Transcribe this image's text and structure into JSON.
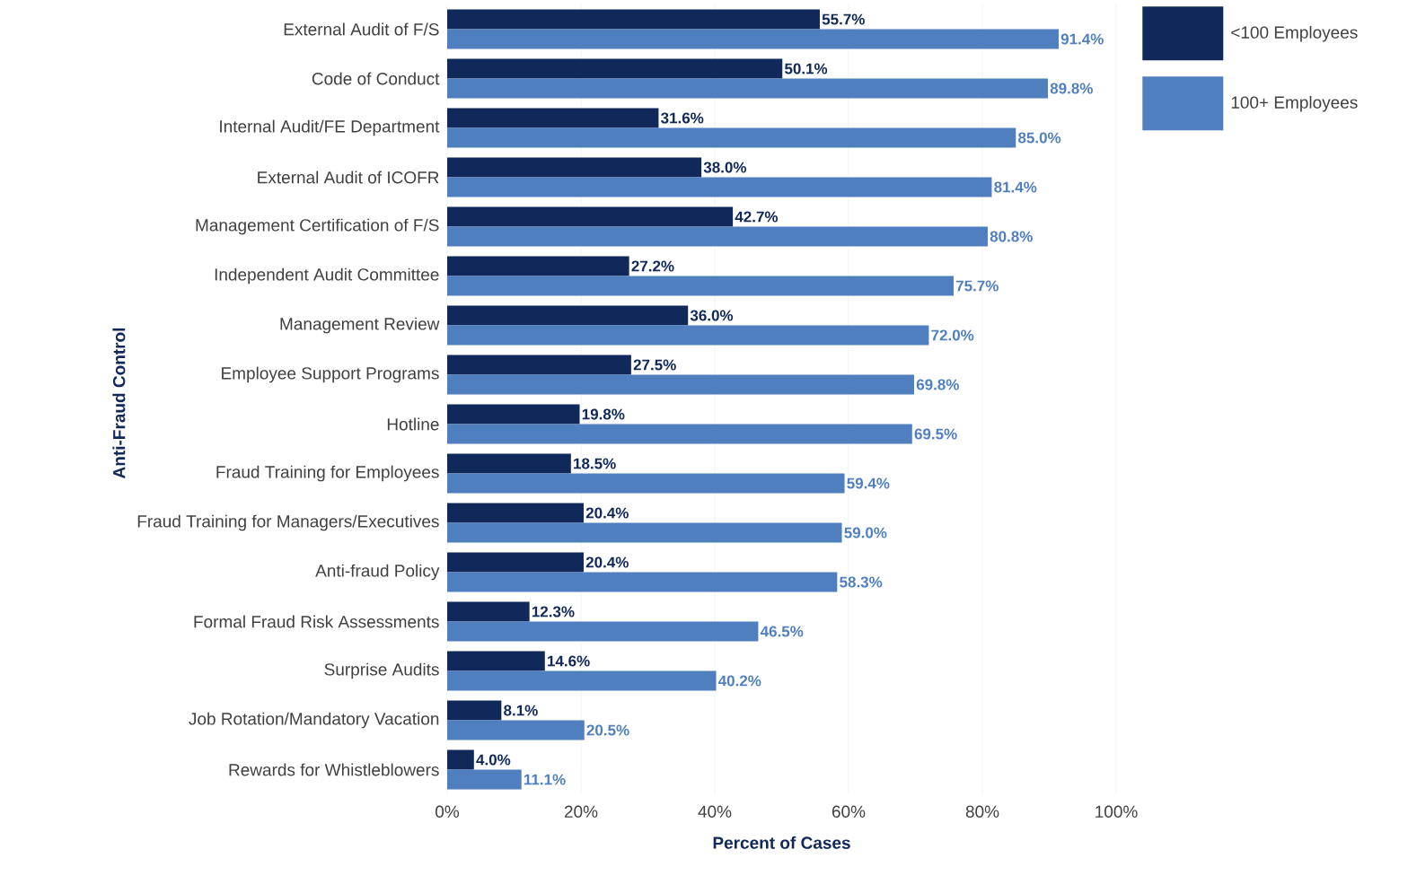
{
  "chart_data": {
    "type": "bar",
    "orientation": "horizontal",
    "xlabel": "Percent of Cases",
    "ylabel": "Anti-Fraud Control",
    "categories": [
      "External Audit of F/S",
      "Code of Conduct",
      "Internal Audit/FE Department",
      "External Audit of ICOFR",
      "Management Certification of F/S",
      "Independent Audit Committee",
      "Management Review",
      "Employee Support Programs",
      "Hotline",
      "Fraud Training for Employees",
      "Fraud Training for Managers/Executives",
      "Anti-fraud Policy",
      "Formal Fraud Risk Assessments",
      "Surprise Audits",
      "Job Rotation/Mandatory Vacation",
      "Rewards for Whistleblowers"
    ],
    "series": [
      {
        "name": "<100 Employees",
        "color": "#11295a",
        "values": [
          55.7,
          50.1,
          31.6,
          38.0,
          42.7,
          27.2,
          36.0,
          27.5,
          19.8,
          18.5,
          20.4,
          20.4,
          12.3,
          14.6,
          8.1,
          4.0
        ],
        "value_labels": [
          "55.7%",
          "50.1%",
          "31.6%",
          "38.0%",
          "42.7%",
          "27.2%",
          "36.0%",
          "27.5%",
          "19.8%",
          "18.5%",
          "20.4%",
          "20.4%",
          "12.3%",
          "14.6%",
          "8.1%",
          "4.0%"
        ]
      },
      {
        "name": "100+ Employees",
        "color": "#4f7fbf",
        "values": [
          91.4,
          89.8,
          85.0,
          81.4,
          80.8,
          75.7,
          72.0,
          69.8,
          69.5,
          59.4,
          59.0,
          58.3,
          46.5,
          40.2,
          20.5,
          11.1
        ],
        "value_labels": [
          "91.4%",
          "89.8%",
          "85.0%",
          "81.4%",
          "80.8%",
          "75.7%",
          "72.0%",
          "69.8%",
          "69.5%",
          "59.4%",
          "59.0%",
          "58.3%",
          "46.5%",
          "40.2%",
          "20.5%",
          "11.1%"
        ]
      }
    ],
    "xlim": [
      0,
      100
    ],
    "xticks": [
      {
        "value": 0,
        "label": "0%"
      },
      {
        "value": 20,
        "label": "20%"
      },
      {
        "value": 40,
        "label": "40%"
      },
      {
        "value": 60,
        "label": "60%"
      },
      {
        "value": 80,
        "label": "80%"
      },
      {
        "value": 100,
        "label": "100%"
      }
    ],
    "grid": "x",
    "legend": "top right"
  }
}
